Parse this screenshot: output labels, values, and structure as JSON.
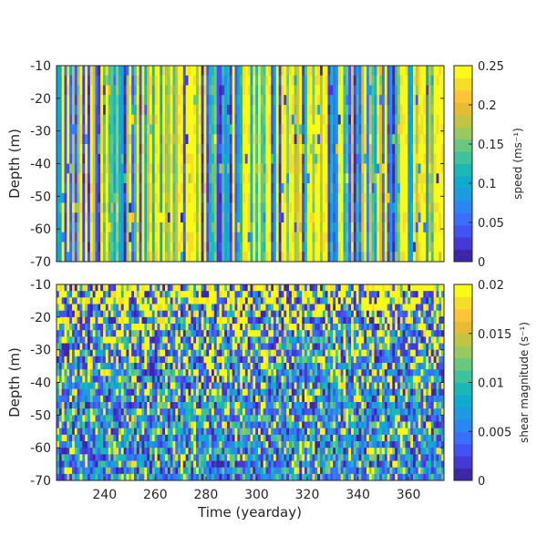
{
  "chart_data": [
    {
      "type": "heatmap",
      "panel": "top",
      "ylabel": "Depth (m)",
      "xlabel": "",
      "xlim": [
        221,
        374
      ],
      "ylim": [
        -70,
        -10
      ],
      "yticks": [
        -10,
        -20,
        -30,
        -40,
        -50,
        -60,
        -70
      ],
      "ytick_labels": [
        "-10",
        "-20",
        "-30",
        "-40",
        "-50",
        "-60",
        "-70"
      ],
      "xticks_visible": false,
      "colorbar": {
        "label": "speed (ms⁻¹)",
        "clim": [
          0,
          0.25
        ],
        "ticks": [
          0,
          0.05,
          0.1,
          0.15,
          0.2,
          0.25
        ],
        "tick_labels": [
          "0",
          "0.05",
          "0.1",
          "0.15",
          "0.2",
          "0.25"
        ]
      },
      "colormap": "parula",
      "pattern": "mostly vertical streaks, values near saturation frequent"
    },
    {
      "type": "heatmap",
      "panel": "bottom",
      "ylabel": "Depth (m)",
      "xlabel": "Time (yearday)",
      "xlim": [
        221,
        374
      ],
      "ylim": [
        -70,
        -10
      ],
      "xticks": [
        240,
        260,
        280,
        300,
        320,
        340,
        360
      ],
      "xtick_labels": [
        "240",
        "260",
        "280",
        "300",
        "320",
        "340",
        "360"
      ],
      "yticks": [
        -10,
        -20,
        -30,
        -40,
        -50,
        -60,
        -70
      ],
      "ytick_labels": [
        "-10",
        "-20",
        "-30",
        "-40",
        "-50",
        "-60",
        "-70"
      ],
      "colorbar": {
        "label": "shear magnitude (s⁻¹)",
        "clim": [
          0,
          0.02
        ],
        "ticks": [
          0,
          0.005,
          0.01,
          0.015,
          0.02
        ],
        "tick_labels": [
          "0",
          "0.005",
          "0.01",
          "0.015",
          "0.02"
        ]
      },
      "colormap": "parula",
      "pattern": "speckled, high values concentrated near surface"
    }
  ],
  "colors": {
    "parula": [
      "#3e26a8",
      "#4538d6",
      "#4353f3",
      "#3a6efc",
      "#2a86f1",
      "#1e9ae0",
      "#0fabcf",
      "#1bb8b5",
      "#3ec29b",
      "#69c87f",
      "#98c961",
      "#c3c442",
      "#e6bc32",
      "#fcc535",
      "#f6dd28",
      "#f9fb15"
    ],
    "axis": "#262626",
    "background": "#ffffff"
  }
}
